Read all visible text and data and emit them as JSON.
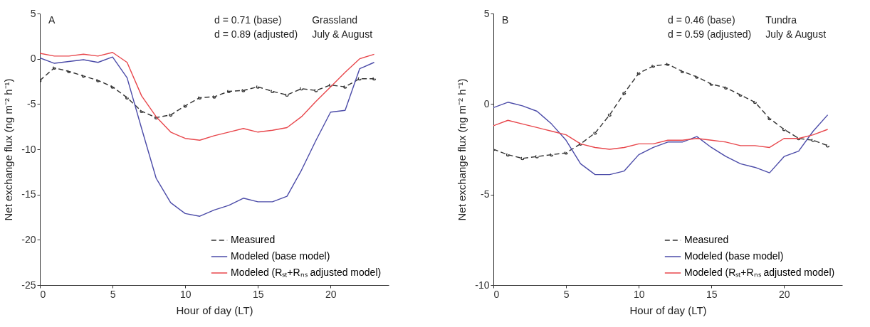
{
  "chart_data": [
    {
      "type": "line",
      "xlabel": "Hour of day (LT)",
      "ylabel": "Net exchange flux (ng m⁻² h⁻¹)",
      "annotations": [
        "A",
        "d = 0.71 (base)",
        "d = 0.89 (adjusted)",
        "Grassland",
        "July & August"
      ],
      "x": [
        0,
        1,
        2,
        3,
        4,
        5,
        6,
        7,
        8,
        9,
        10,
        11,
        12,
        13,
        14,
        15,
        16,
        17,
        18,
        19,
        20,
        21,
        22,
        23
      ],
      "xlim": [
        0,
        24
      ],
      "xticks": [
        0,
        5,
        10,
        15,
        20
      ],
      "ylim": [
        -25,
        5
      ],
      "yticks": [
        -25,
        -20,
        -15,
        -10,
        -5,
        0,
        5
      ],
      "legend": "bottom right",
      "series": [
        {
          "name": "Measured",
          "color": "#333333",
          "marker": "circle",
          "line_style": "dashed",
          "values": [
            -2.4,
            -1.0,
            -1.4,
            -1.9,
            -2.4,
            -3.1,
            -4.3,
            -5.8,
            -6.5,
            -6.2,
            -5.2,
            -4.3,
            -4.2,
            -3.6,
            -3.5,
            -3.1,
            -3.6,
            -4.0,
            -3.3,
            -3.5,
            -2.9,
            -3.1,
            -2.2,
            -2.2
          ]
        },
        {
          "name": "Modeled (base model)",
          "color": "#4b4ba8",
          "line_style": "solid",
          "values": [
            0.1,
            -0.5,
            -0.3,
            -0.1,
            -0.4,
            0.2,
            -2.1,
            -7.7,
            -13.2,
            -15.9,
            -17.1,
            -17.4,
            -16.7,
            -16.2,
            -15.4,
            -15.8,
            -15.8,
            -15.2,
            -12.3,
            -9.0,
            -5.9,
            -5.7,
            -1.1,
            -0.4
          ]
        },
        {
          "name": "Modeled (Rₛₜ+Rₙₛ adjusted model)",
          "color": "#e8474c",
          "line_style": "solid",
          "values": [
            0.6,
            0.3,
            0.3,
            0.5,
            0.3,
            0.7,
            -0.4,
            -4.1,
            -6.4,
            -8.1,
            -8.8,
            -9.0,
            -8.5,
            -8.1,
            -7.7,
            -8.1,
            -7.9,
            -7.6,
            -6.4,
            -4.7,
            -3.1,
            -1.5,
            0.0,
            0.5
          ]
        }
      ]
    },
    {
      "type": "line",
      "xlabel": "Hour of day (LT)",
      "ylabel": "Net exchange flux (ng m⁻² h⁻¹)",
      "annotations": [
        "B",
        "d = 0.46 (base)",
        "d = 0.59 (adjusted)",
        "Tundra",
        "July & August"
      ],
      "x": [
        0,
        1,
        2,
        3,
        4,
        5,
        6,
        7,
        8,
        9,
        10,
        11,
        12,
        13,
        14,
        15,
        16,
        17,
        18,
        19,
        20,
        21,
        22,
        23
      ],
      "xlim": [
        0,
        24
      ],
      "xticks": [
        0,
        5,
        10,
        15,
        20
      ],
      "ylim": [
        -10,
        5
      ],
      "yticks": [
        -10,
        -5,
        0,
        5
      ],
      "legend": "bottom right",
      "series": [
        {
          "name": "Measured",
          "color": "#333333",
          "marker": "circle",
          "line_style": "dashed",
          "values": [
            -2.5,
            -2.8,
            -3.0,
            -2.9,
            -2.8,
            -2.7,
            -2.2,
            -1.6,
            -0.6,
            0.6,
            1.7,
            2.1,
            2.2,
            1.8,
            1.5,
            1.1,
            0.9,
            0.5,
            0.1,
            -0.8,
            -1.4,
            -1.9,
            -2.0,
            -2.3
          ]
        },
        {
          "name": "Modeled (base model)",
          "color": "#4b4ba8",
          "line_style": "solid",
          "values": [
            -0.2,
            0.1,
            -0.1,
            -0.4,
            -1.1,
            -2.0,
            -3.3,
            -3.9,
            -3.9,
            -3.7,
            -2.8,
            -2.4,
            -2.1,
            -2.1,
            -1.8,
            -2.4,
            -2.9,
            -3.3,
            -3.5,
            -3.8,
            -2.9,
            -2.6,
            -1.5,
            -0.6
          ]
        },
        {
          "name": "Modeled (Rₛₜ+Rₙₛ adjusted model)",
          "color": "#e8474c",
          "line_style": "solid",
          "values": [
            -1.2,
            -0.9,
            -1.1,
            -1.3,
            -1.5,
            -1.7,
            -2.2,
            -2.4,
            -2.5,
            -2.4,
            -2.2,
            -2.2,
            -2.0,
            -2.0,
            -1.9,
            -2.0,
            -2.1,
            -2.3,
            -2.3,
            -2.4,
            -1.9,
            -1.9,
            -1.7,
            -1.4
          ]
        }
      ]
    }
  ]
}
